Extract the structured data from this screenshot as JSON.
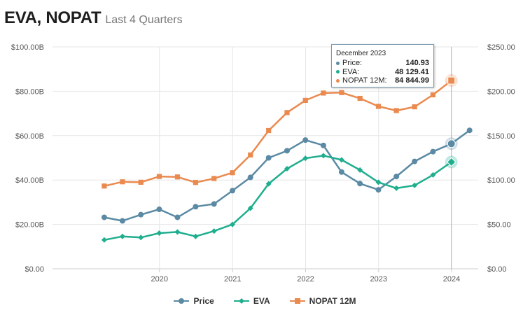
{
  "header": {
    "title": "EVA, NOPAT",
    "subtitle": "Last 4 Quarters"
  },
  "colors": {
    "price": "#5b8aa4",
    "eva": "#1fae8e",
    "nopat": "#ea8a4f",
    "grid": "#e6e6e6",
    "axis": "#cccccc",
    "crosshair": "#a9b7c6"
  },
  "legend": {
    "price": "Price",
    "eva": "EVA",
    "nopat": "NOPAT 12M"
  },
  "tooltip": {
    "date": "December 2023",
    "rows": [
      {
        "label": "Price:",
        "value": "140.93"
      },
      {
        "label": "EVA:",
        "value": "48 129.41"
      },
      {
        "label": "NOPAT 12M:",
        "value": "84 844.99"
      }
    ]
  },
  "chart_data": {
    "type": "line",
    "left_ticks": [
      "$0.00",
      "$20.00B",
      "$40.00B",
      "$60.00B",
      "$80.00B",
      "$100.00B"
    ],
    "right_ticks": [
      "$0.00",
      "$50.00",
      "$100.00",
      "$150.00",
      "$200.00",
      "$250.00"
    ],
    "x_ticks": [
      "2020",
      "2021",
      "2022",
      "2023",
      "2024"
    ],
    "left_ylim": [
      0,
      100
    ],
    "right_ylim": [
      0,
      250
    ],
    "grid": true,
    "legend_position": "bottom",
    "x_dates": [
      "2019-03-31",
      "2019-06-30",
      "2019-09-30",
      "2019-12-31",
      "2020-03-31",
      "2020-06-30",
      "2020-09-30",
      "2020-12-31",
      "2021-03-31",
      "2021-06-30",
      "2021-09-30",
      "2021-12-31",
      "2022-03-31",
      "2022-06-30",
      "2022-09-30",
      "2022-12-31",
      "2023-03-31",
      "2023-06-30",
      "2023-09-30",
      "2023-12-31",
      "2024-03-31"
    ],
    "series": [
      {
        "name": "Price",
        "axis": "right",
        "values": [
          58,
          54,
          61,
          67,
          58,
          70,
          73,
          88,
          103,
          125,
          133,
          145,
          139,
          109,
          96,
          89,
          104,
          121,
          132,
          140.93,
          156
        ]
      },
      {
        "name": "EVA",
        "axis": "left",
        "values": [
          13,
          14.6,
          14.1,
          16.1,
          16.6,
          14.6,
          17,
          20,
          27.3,
          38.3,
          45.1,
          49.8,
          51,
          49.1,
          44.5,
          39,
          36.3,
          37.6,
          42.3,
          48.13,
          null
        ]
      },
      {
        "name": "NOPAT 12M",
        "axis": "left",
        "values": [
          37.3,
          39.2,
          39,
          41.6,
          41.4,
          38.9,
          40.7,
          43.3,
          51.3,
          62.3,
          70.4,
          75.9,
          79.2,
          79.4,
          76.8,
          73.2,
          71.3,
          73,
          78.4,
          84.84,
          null
        ]
      }
    ],
    "highlight_index": 19
  }
}
